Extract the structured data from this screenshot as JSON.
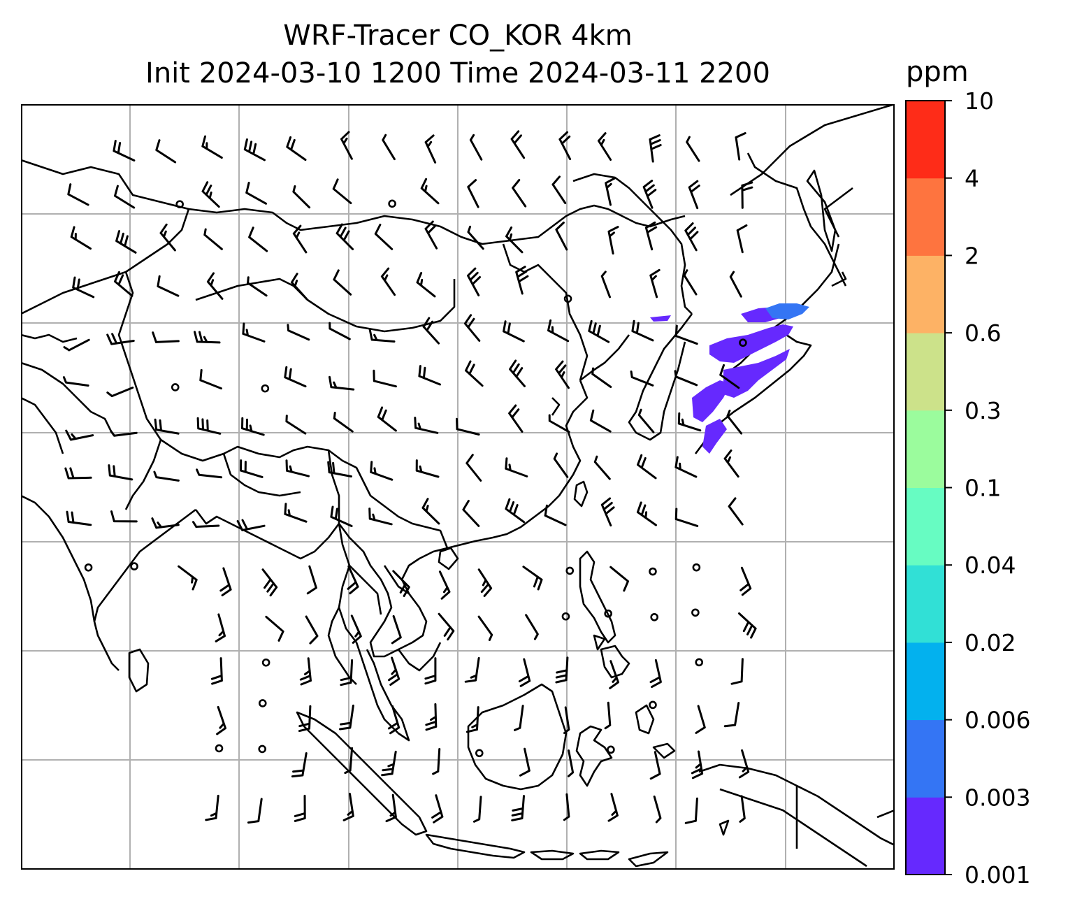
{
  "title": {
    "line1": "WRF-Tracer CO_KOR 4km",
    "line2": "Init 2024-03-10 1200 Time 2024-03-11 2200"
  },
  "colorbar": {
    "unit": "ppm",
    "levels": [
      "0.001",
      "0.003",
      "0.006",
      "0.02",
      "0.04",
      "0.1",
      "0.3",
      "0.6",
      "2",
      "4",
      "10"
    ],
    "colors": [
      "#6629fe",
      "#3475f4",
      "#03b1ee",
      "#31e0d6",
      "#67fcc2",
      "#9bfc9d",
      "#cce28a",
      "#fdb265",
      "#fe743f",
      "#fe2c18"
    ]
  },
  "map": {
    "grid_color": "#b0b0b0",
    "coastline_color": "#000000",
    "plume_colors": [
      "#6629fe",
      "#3475f4"
    ]
  }
}
